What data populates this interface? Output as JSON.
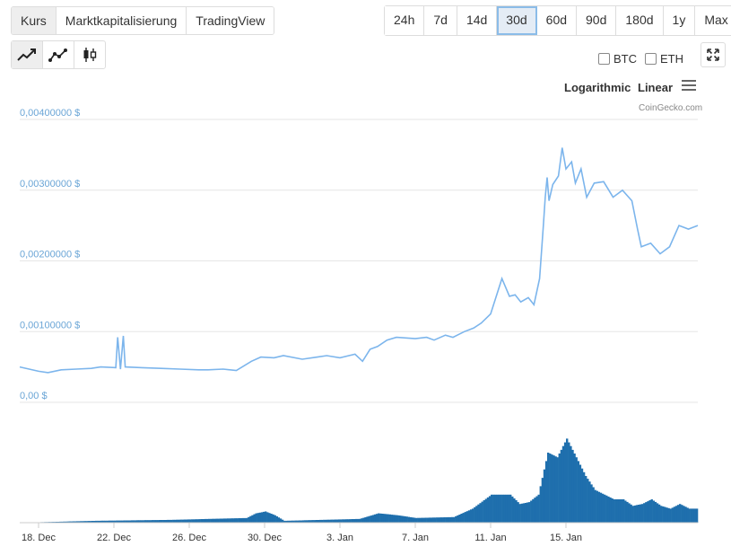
{
  "tabs": [
    "Kurs",
    "Marktkapitalisierung",
    "TradingView"
  ],
  "ranges": [
    "24h",
    "7d",
    "14d",
    "30d",
    "60d",
    "90d",
    "180d",
    "1y",
    "Max"
  ],
  "active_range": "30d",
  "compare": {
    "btc": "BTC",
    "eth": "ETH"
  },
  "scale": {
    "log": "Logarithmic",
    "linear": "Linear"
  },
  "credit": "CoinGecko.com",
  "colors": {
    "line": "#7cb5ec",
    "volume": "#1f6fad",
    "grid": "#e6e6e6"
  },
  "icons": [
    "line-chart-icon",
    "line-markers-icon",
    "candlestick-icon",
    "expand-icon",
    "menu-icon"
  ],
  "chart_data": {
    "type": "line",
    "ylim": [
      0,
      0.004
    ],
    "yticks": [
      0,
      0.001,
      0.002,
      0.003,
      0.004
    ],
    "ytick_labels": [
      "0,00 $",
      "0,00100000 $",
      "0,00200000 $",
      "0,00300000 $",
      "0,00400000 $"
    ],
    "xtick_labels": [
      "18. Dec",
      "22. Dec",
      "26. Dec",
      "30. Dec",
      "3. Jan",
      "7. Jan",
      "11. Jan",
      "15. Jan"
    ],
    "x_start": "2017-12-17",
    "x_end": "2018-01-16",
    "series": [
      {
        "values": [
          [
            0.0,
            0.0005
          ],
          [
            1.0,
            0.00044
          ],
          [
            1.5,
            0.00042
          ],
          [
            2.2,
            0.00046
          ],
          [
            3.0,
            0.00047
          ],
          [
            3.8,
            0.00048
          ],
          [
            4.3,
            0.0005
          ],
          [
            5.1,
            0.00049
          ],
          [
            5.2,
            0.00092
          ],
          [
            5.35,
            0.00047
          ],
          [
            5.5,
            0.00094
          ],
          [
            5.6,
            0.0005
          ],
          [
            6.5,
            0.00049
          ],
          [
            7.5,
            0.00048
          ],
          [
            8.5,
            0.00047
          ],
          [
            9.5,
            0.00046
          ],
          [
            10.0,
            0.00046
          ],
          [
            10.8,
            0.00047
          ],
          [
            11.5,
            0.00045
          ],
          [
            12.3,
            0.00058
          ],
          [
            12.8,
            0.00064
          ],
          [
            13.5,
            0.00063
          ],
          [
            14.0,
            0.00066
          ],
          [
            15.0,
            0.00061
          ],
          [
            15.8,
            0.00064
          ],
          [
            16.3,
            0.00066
          ],
          [
            17.0,
            0.00063
          ],
          [
            17.8,
            0.00068
          ],
          [
            18.2,
            0.00058
          ],
          [
            18.6,
            0.00075
          ],
          [
            19.0,
            0.00079
          ],
          [
            19.5,
            0.00088
          ],
          [
            20.0,
            0.00092
          ],
          [
            21.0,
            0.0009
          ],
          [
            21.6,
            0.00092
          ],
          [
            22.0,
            0.00088
          ],
          [
            22.6,
            0.00095
          ],
          [
            23.0,
            0.00092
          ],
          [
            23.6,
            0.001
          ],
          [
            24.1,
            0.00105
          ],
          [
            24.5,
            0.00112
          ],
          [
            25.0,
            0.00125
          ],
          [
            25.3,
            0.0015
          ],
          [
            25.6,
            0.00175
          ],
          [
            26.0,
            0.0015
          ],
          [
            26.3,
            0.00152
          ],
          [
            26.6,
            0.00142
          ],
          [
            27.0,
            0.00148
          ],
          [
            27.3,
            0.00138
          ],
          [
            27.6,
            0.00175
          ],
          [
            27.8,
            0.0025
          ],
          [
            27.9,
            0.0029
          ],
          [
            28.0,
            0.00318
          ],
          [
            28.1,
            0.00285
          ],
          [
            28.3,
            0.00308
          ],
          [
            28.6,
            0.0032
          ],
          [
            28.8,
            0.0036
          ],
          [
            29.0,
            0.0033
          ],
          [
            29.3,
            0.0034
          ],
          [
            29.5,
            0.0031
          ],
          [
            29.8,
            0.0033
          ],
          [
            30.1,
            0.0029
          ],
          [
            30.5,
            0.0031
          ],
          [
            31.0,
            0.00312
          ],
          [
            31.5,
            0.0029
          ],
          [
            32.0,
            0.003
          ],
          [
            32.5,
            0.00285
          ],
          [
            32.8,
            0.00245
          ],
          [
            33.0,
            0.0022
          ],
          [
            33.5,
            0.00225
          ],
          [
            34.0,
            0.0021
          ],
          [
            34.5,
            0.0022
          ],
          [
            35.0,
            0.0025
          ],
          [
            35.5,
            0.00245
          ],
          [
            36.0,
            0.0025
          ]
        ]
      },
      {
        "name": "",
        "volume": [
          [
            0.0,
            0.0
          ],
          [
            4.0,
            0.02
          ],
          [
            8.0,
            0.03
          ],
          [
            12.0,
            0.05
          ],
          [
            12.5,
            0.1
          ],
          [
            13.0,
            0.12
          ],
          [
            13.5,
            0.08
          ],
          [
            14.0,
            0.02
          ],
          [
            18.0,
            0.04
          ],
          [
            19.0,
            0.1
          ],
          [
            20.0,
            0.08
          ],
          [
            21.0,
            0.05
          ],
          [
            23.0,
            0.06
          ],
          [
            24.0,
            0.15
          ],
          [
            25.0,
            0.3
          ],
          [
            26.0,
            0.3
          ],
          [
            26.5,
            0.2
          ],
          [
            27.0,
            0.22
          ],
          [
            27.5,
            0.3
          ],
          [
            28.0,
            0.75
          ],
          [
            28.5,
            0.7
          ],
          [
            29.0,
            0.9
          ],
          [
            29.5,
            0.7
          ],
          [
            30.0,
            0.5
          ],
          [
            30.5,
            0.35
          ],
          [
            31.0,
            0.3
          ],
          [
            31.5,
            0.25
          ],
          [
            32.0,
            0.25
          ],
          [
            32.5,
            0.18
          ],
          [
            33.0,
            0.2
          ],
          [
            33.5,
            0.25
          ],
          [
            34.0,
            0.18
          ],
          [
            34.5,
            0.15
          ],
          [
            35.0,
            0.2
          ],
          [
            35.5,
            0.15
          ],
          [
            36.0,
            0.15
          ]
        ]
      }
    ]
  }
}
